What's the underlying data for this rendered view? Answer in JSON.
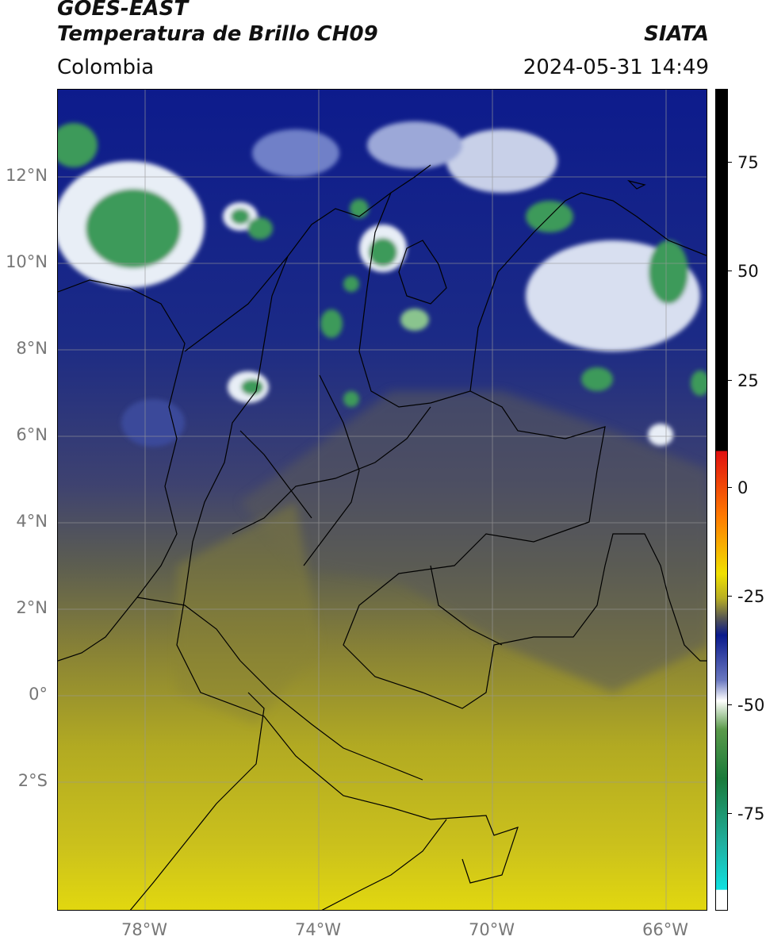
{
  "header": {
    "title_line1": "GOES-EAST",
    "title_line2": "Temperatura de Brillo CH09",
    "organization": "SIATA",
    "region": "Colombia",
    "datetime": "2024-05-31 14:49"
  },
  "map": {
    "lat_labels": [
      "12°N",
      "10°N",
      "8°N",
      "6°N",
      "4°N",
      "2°N",
      "0°",
      "2°S"
    ],
    "lon_labels": [
      "78°W",
      "74°W",
      "70°W",
      "66°W"
    ],
    "gridlines": true,
    "colors": {
      "warm_south": "#d2c51c",
      "mid": "#6f6c47",
      "cold": "#0d1b8c",
      "very_cold": "#e8eef6",
      "coldest": "#3a9a5a",
      "borders": "#000000"
    }
  },
  "colorbar": {
    "tick_labels": [
      "75",
      "50",
      "25",
      "0",
      "-25",
      "-50",
      "-75"
    ],
    "colors": [
      "#000000",
      "#e01010",
      "#ff8c00",
      "#e8e000",
      "#555555",
      "#0a1a8c",
      "#ffffff",
      "#2a8a3a",
      "#10d0c0"
    ]
  }
}
